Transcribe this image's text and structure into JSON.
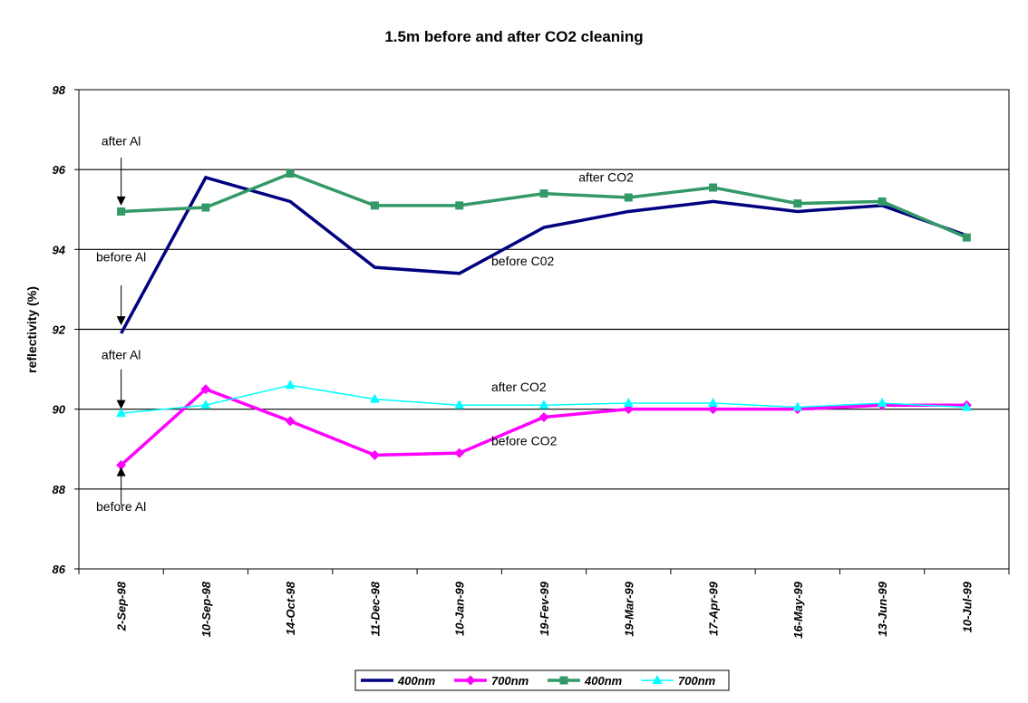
{
  "chart_data": {
    "type": "line",
    "title": "1.5m before and after CO2 cleaning",
    "ylabel": "reflectivity (%)",
    "xlabel": "",
    "ylim": [
      86,
      98
    ],
    "yticks": [
      86,
      88,
      90,
      92,
      94,
      96,
      98
    ],
    "grid": "horizontal",
    "legend_position": "bottom",
    "categories": [
      "2-Sep-98",
      "10-Sep-98",
      "14-Oct-98",
      "11-Dec-98",
      "10-Jan-99",
      "19-Fev-99",
      "19-Mar-99",
      "17-Apr-99",
      "16-May-99",
      "13-Jun-99",
      "10-Jul-99"
    ],
    "series": [
      {
        "name": "400nm",
        "color": "#000080",
        "marker": "none",
        "width": 3.5,
        "values": [
          91.9,
          95.8,
          95.2,
          93.55,
          93.4,
          94.55,
          94.95,
          95.2,
          94.95,
          95.1,
          94.35
        ]
      },
      {
        "name": "700nm",
        "color": "#ff00ff",
        "marker": "diamond",
        "width": 3.5,
        "values": [
          88.6,
          90.5,
          89.7,
          88.85,
          88.9,
          89.8,
          90.0,
          90.0,
          90.0,
          90.1,
          90.1
        ]
      },
      {
        "name": "400nm",
        "color": "#339966",
        "marker": "square",
        "width": 3.5,
        "values": [
          94.95,
          95.05,
          95.9,
          95.1,
          95.1,
          95.4,
          95.3,
          95.55,
          95.15,
          95.2,
          94.3
        ]
      },
      {
        "name": "700nm",
        "color": "#00ffff",
        "marker": "triangle",
        "width": 1.5,
        "values": [
          89.9,
          90.1,
          90.6,
          90.25,
          90.1,
          90.1,
          90.15,
          90.15,
          90.05,
          90.15,
          90.05
        ]
      }
    ],
    "annotations": [
      {
        "text": "after Al",
        "x": "2-Sep-98",
        "y": 96.6
      },
      {
        "text": "before Al",
        "x": "2-Sep-98",
        "y": 93.7
      },
      {
        "text": "after Al",
        "x": "2-Sep-98",
        "y": 91.25
      },
      {
        "text": "before Al",
        "x": "2-Sep-98",
        "y": 87.45
      },
      {
        "text": "after CO2",
        "x": "19-Mar-99",
        "y": 95.7
      },
      {
        "text": "before C02",
        "x": "19-Fev-99",
        "y": 93.6
      },
      {
        "text": "after CO2",
        "x": "19-Fev-99",
        "y": 90.45
      },
      {
        "text": "before CO2",
        "x": "19-Fev-99",
        "y": 89.1
      }
    ],
    "arrows": [
      {
        "x": "2-Sep-98",
        "from": 96.3,
        "to": 95.1
      },
      {
        "x": "2-Sep-98",
        "from": 93.1,
        "to": 92.1
      },
      {
        "x": "2-Sep-98",
        "from": 91.0,
        "to": 90.0
      },
      {
        "x": "2-Sep-98",
        "from": 87.6,
        "to": 88.55
      }
    ]
  }
}
